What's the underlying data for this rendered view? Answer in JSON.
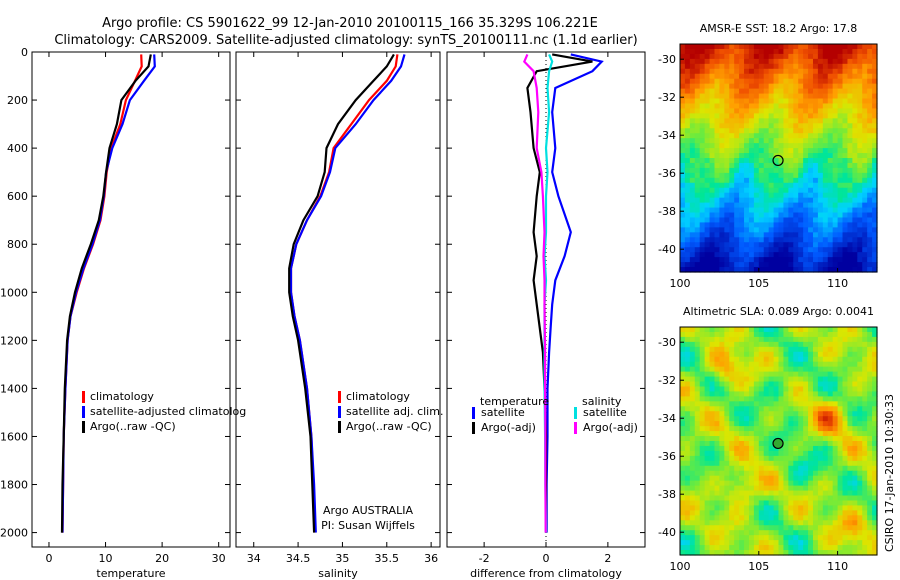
{
  "header": {
    "line1": "Argo profile: CS 5901622_99 12-Jan-2010 20100115_166 35.329S 106.221E",
    "line2": "Climatology: CARS2009. Satellite-adjusted climatology: synTS_20100111.nc (1.1d earlier)"
  },
  "footer_vertical": "CSIRO 17-Jan-2010 10:30:33",
  "colors": {
    "climatology": "#ff0000",
    "satellite": "#0000ff",
    "argo": "#000000",
    "sat_sal": "#00e0e0",
    "argo_sal": "#ff00ff"
  },
  "chart_data": [
    {
      "type": "line",
      "xlabel": "temperature",
      "ylabel": "",
      "xlim": [
        -3,
        32
      ],
      "ylim": [
        2060,
        0
      ],
      "xticks": [
        0,
        10,
        20,
        30
      ],
      "yticks": [
        0,
        200,
        400,
        600,
        800,
        1000,
        1200,
        1400,
        1600,
        1800,
        2000
      ],
      "legend": [
        "climatology",
        "satellite-adjusted climatolog",
        "Argo(..raw -QC)"
      ],
      "series": [
        {
          "name": "climatology",
          "color": "#ff0000",
          "x": [
            16.3,
            16.4,
            15.2,
            13.6,
            12.6,
            11.0,
            10.2,
            9.8,
            9.1,
            7.8,
            6.2,
            4.9,
            3.8,
            3.3,
            2.9,
            2.6,
            2.5,
            2.4
          ],
          "y": [
            10,
            60,
            120,
            200,
            300,
            400,
            500,
            600,
            700,
            800,
            900,
            1000,
            1100,
            1200,
            1400,
            1600,
            1800,
            2000
          ]
        },
        {
          "name": "satellite-adjusted climatolog",
          "color": "#0000ff",
          "x": [
            18.6,
            18.7,
            16.8,
            14.3,
            13.0,
            11.2,
            10.1,
            9.7,
            9.0,
            7.7,
            6.1,
            4.8,
            3.8,
            3.3,
            2.9,
            2.6,
            2.5,
            2.4
          ],
          "y": [
            10,
            60,
            120,
            200,
            300,
            400,
            500,
            600,
            700,
            800,
            900,
            1000,
            1100,
            1200,
            1400,
            1600,
            1800,
            2000
          ]
        },
        {
          "name": "Argo(..raw -QC)",
          "color": "#000000",
          "x": [
            18.0,
            17.6,
            15.3,
            12.8,
            12.0,
            10.7,
            10.1,
            9.6,
            8.8,
            7.4,
            5.8,
            4.6,
            3.7,
            3.2,
            2.8,
            2.6,
            2.4,
            2.3
          ],
          "y": [
            10,
            60,
            120,
            200,
            300,
            400,
            500,
            600,
            700,
            800,
            900,
            1000,
            1100,
            1200,
            1400,
            1600,
            1800,
            2000
          ]
        }
      ]
    },
    {
      "type": "line",
      "xlabel": "salinity",
      "xlim": [
        33.8,
        36.1
      ],
      "ylim": [
        2060,
        0
      ],
      "xticks": [
        34,
        34.5,
        35,
        35.5,
        36
      ],
      "legend": [
        "climatology",
        "satellite adj. clim.",
        "Argo(..raw -QC)"
      ],
      "annotation": [
        "Argo AUSTRALIA",
        "PI: Susan Wijffels"
      ],
      "series": [
        {
          "name": "climatology",
          "color": "#ff0000",
          "x": [
            35.62,
            35.6,
            35.5,
            35.3,
            35.1,
            34.9,
            34.85,
            34.75,
            34.6,
            34.48,
            34.42,
            34.42,
            34.46,
            34.52,
            34.6,
            34.65,
            34.67,
            34.69
          ],
          "y": [
            10,
            60,
            120,
            200,
            300,
            400,
            500,
            600,
            700,
            800,
            900,
            1000,
            1100,
            1200,
            1400,
            1600,
            1800,
            2000
          ]
        },
        {
          "name": "satellite adj. clim.",
          "color": "#0000ff",
          "x": [
            35.7,
            35.66,
            35.55,
            35.35,
            35.15,
            34.92,
            34.86,
            34.76,
            34.6,
            34.48,
            34.42,
            34.42,
            34.46,
            34.52,
            34.6,
            34.65,
            34.68,
            34.7
          ],
          "y": [
            10,
            60,
            120,
            200,
            300,
            400,
            500,
            600,
            700,
            800,
            900,
            1000,
            1100,
            1200,
            1400,
            1600,
            1800,
            2000
          ]
        },
        {
          "name": "Argo(..raw -QC)",
          "color": "#000000",
          "x": [
            35.58,
            35.5,
            35.35,
            35.15,
            34.95,
            34.82,
            34.8,
            34.72,
            34.56,
            34.45,
            34.4,
            34.4,
            34.44,
            34.5,
            34.58,
            34.64,
            34.66,
            34.68
          ],
          "y": [
            10,
            60,
            120,
            200,
            300,
            400,
            500,
            600,
            700,
            800,
            900,
            1000,
            1100,
            1200,
            1400,
            1600,
            1800,
            2000
          ]
        }
      ]
    },
    {
      "type": "line",
      "xlabel": "difference from climatology",
      "xlim": [
        -3.2,
        3.2
      ],
      "ylim": [
        2060,
        0
      ],
      "xticks": [
        -2,
        0,
        2
      ],
      "legend_temperature_title": "temperature",
      "legend_salinity_title": "salinity",
      "legend": [
        "satellite",
        "Argo(-adj)",
        "satellite",
        "Argo(-adj)"
      ],
      "series": [
        {
          "name": "satellite",
          "color": "#0000ff",
          "x": [
            0.8,
            1.8,
            1.5,
            0.3,
            0.2,
            0.3,
            0.2,
            0.4,
            0.8,
            0.6,
            0.3,
            0.2,
            0.15,
            0.1,
            0.05,
            0.05,
            0.02,
            0.02
          ],
          "y": [
            10,
            40,
            80,
            150,
            250,
            400,
            500,
            600,
            750,
            850,
            950,
            1050,
            1150,
            1250,
            1400,
            1600,
            1800,
            2000
          ]
        },
        {
          "name": "Argo(-adj)",
          "color": "#000000",
          "x": [
            0.2,
            1.5,
            -0.3,
            -0.6,
            -0.5,
            -0.4,
            -0.2,
            -0.3,
            -0.4,
            -0.3,
            -0.4,
            -0.3,
            -0.2,
            -0.1,
            -0.05,
            0.0,
            0.0,
            0.0
          ],
          "y": [
            10,
            40,
            80,
            150,
            250,
            400,
            500,
            600,
            750,
            850,
            950,
            1050,
            1150,
            1250,
            1400,
            1600,
            1800,
            2000
          ]
        },
        {
          "name": "satellite",
          "color": "#00e0e0",
          "x": [
            0.1,
            0.2,
            0.1,
            0.05,
            0.1,
            0.0,
            0.05,
            0.0,
            0.0,
            -0.05,
            0.0,
            -0.05,
            -0.05,
            -0.05,
            -0.05,
            -0.03,
            -0.02,
            0.0
          ],
          "y": [
            10,
            40,
            80,
            150,
            250,
            400,
            500,
            600,
            750,
            850,
            950,
            1050,
            1150,
            1250,
            1400,
            1600,
            1800,
            2000
          ]
        },
        {
          "name": "Argo(-adj)",
          "color": "#ff00ff",
          "x": [
            -0.6,
            -0.7,
            -0.4,
            -0.3,
            -0.25,
            -0.3,
            -0.15,
            -0.1,
            -0.05,
            -0.08,
            -0.05,
            -0.05,
            -0.04,
            -0.03,
            -0.03,
            -0.02,
            -0.02,
            -0.01
          ],
          "y": [
            10,
            40,
            80,
            150,
            250,
            400,
            500,
            600,
            750,
            850,
            950,
            1050,
            1150,
            1250,
            1400,
            1600,
            1800,
            2000
          ]
        }
      ]
    },
    {
      "type": "heatmap",
      "title": "AMSR-E SST: 18.2 Argo: 17.8",
      "xlim": [
        100,
        112.5
      ],
      "ylim": [
        -41.2,
        -29.2
      ],
      "xticks": [
        100,
        105,
        110
      ],
      "yticks": [
        -30,
        -32,
        -34,
        -36,
        -38,
        -40
      ],
      "marker": {
        "lon": 106.221,
        "lat": -35.329
      }
    },
    {
      "type": "heatmap",
      "title": "Altimetric SLA: 0.089 Argo: 0.0041",
      "xlim": [
        100,
        112.5
      ],
      "ylim": [
        -41.2,
        -29.2
      ],
      "xticks": [
        100,
        105,
        110
      ],
      "yticks": [
        -30,
        -32,
        -34,
        -36,
        -38,
        -40
      ],
      "marker": {
        "lon": 106.221,
        "lat": -35.329
      }
    }
  ]
}
